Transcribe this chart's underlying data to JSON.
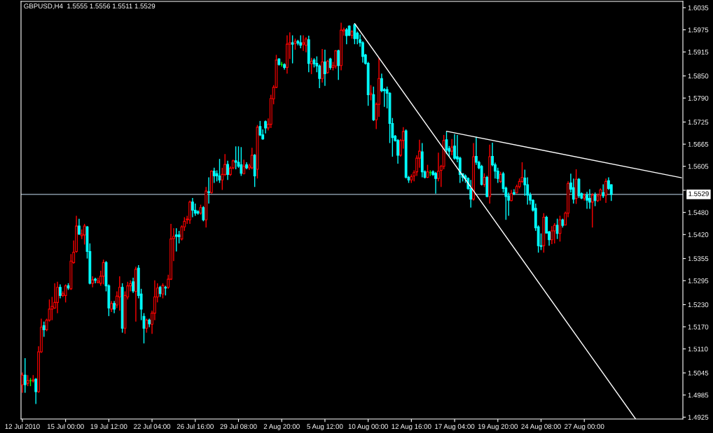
{
  "chart_data": {
    "type": "candlestick",
    "title": "GBPUSD,H4  1.5555 1.5556 1.5511 1.5529",
    "categories": [
      "12 Jul 2010",
      null,
      null,
      null,
      null,
      null,
      null,
      null,
      null,
      null,
      null,
      null,
      null,
      null,
      null,
      null,
      "15 Jul 00:00",
      null,
      null,
      null,
      null,
      null,
      null,
      null,
      null,
      null,
      null,
      null,
      null,
      null,
      null,
      null,
      "19 Jul 12:00",
      null,
      null,
      null,
      null,
      null,
      null,
      null,
      null,
      null,
      null,
      null,
      null,
      null,
      null,
      null,
      "22 Jul 04:00",
      null,
      null,
      null,
      null,
      null,
      null,
      null,
      null,
      null,
      null,
      null,
      null,
      null,
      null,
      null,
      "26 Jul 16:00",
      null,
      null,
      null,
      null,
      null,
      null,
      null,
      null,
      null,
      null,
      null,
      null,
      null,
      null,
      null,
      "29 Jul 08:00",
      null,
      null,
      null,
      null,
      null,
      null,
      null,
      null,
      null,
      null,
      null,
      null,
      null,
      null,
      null,
      "2 Aug 20:00",
      null,
      null,
      null,
      null,
      null,
      null,
      null,
      null,
      null,
      null,
      null,
      null,
      null,
      null,
      null,
      "5 Aug 12:00",
      null,
      null,
      null,
      null,
      null,
      null,
      null,
      null,
      null,
      null,
      null,
      null,
      null,
      null,
      null,
      "10 Aug 00:00",
      null,
      null,
      null,
      null,
      null,
      null,
      null,
      null,
      null,
      null,
      null,
      null,
      null,
      null,
      null,
      "12 Aug 16:00",
      null,
      null,
      null,
      null,
      null,
      null,
      null,
      null,
      null,
      null,
      null,
      null,
      null,
      null,
      null,
      "17 Aug 04:00",
      null,
      null,
      null,
      null,
      null,
      null,
      null,
      null,
      null,
      null,
      null,
      null,
      null,
      null,
      null,
      "19 Aug 20:00",
      null,
      null,
      null,
      null,
      null,
      null,
      null,
      null,
      null,
      null,
      null,
      null,
      null,
      null,
      null,
      "24 Aug 08:00",
      null,
      null,
      null,
      null,
      null,
      null,
      null,
      null,
      null,
      null,
      null,
      null,
      null,
      null,
      null,
      "27 Aug 00:00",
      null,
      null,
      null,
      null,
      null,
      null,
      null,
      null,
      null,
      null,
      null,
      null,
      null,
      null,
      null,
      null,
      null,
      null,
      null,
      null,
      null,
      null,
      null,
      null,
      null,
      null,
      null,
      null,
      null,
      null,
      null,
      null,
      null,
      null,
      null,
      null
    ],
    "ohlc": [
      [
        1.5013,
        1.5046,
        1.4991,
        1.5039
      ],
      [
        1.5039,
        1.5085,
        1.4991,
        1.5013
      ],
      [
        1.5017,
        1.5039,
        1.5009,
        1.5024
      ],
      [
        1.5024,
        1.5031,
        1.5009,
        1.5024
      ],
      [
        1.5023,
        1.5039,
        1.5019,
        1.5026
      ],
      [
        1.5028,
        1.5031,
        1.4961,
        1.4994
      ],
      [
        1.4994,
        1.5117,
        1.4991,
        1.5102
      ],
      [
        1.5102,
        1.5192,
        1.5099,
        1.5169
      ],
      [
        1.5173,
        1.5184,
        1.5143,
        1.5162
      ],
      [
        1.5162,
        1.5192,
        1.5158,
        1.5188
      ],
      [
        1.5188,
        1.5244,
        1.5184,
        1.5218
      ],
      [
        1.5218,
        1.5251,
        1.5188,
        1.5225
      ],
      [
        1.5221,
        1.5288,
        1.5218,
        1.5236
      ],
      [
        1.5236,
        1.5292,
        1.5207,
        1.5277
      ],
      [
        1.5277,
        1.5285,
        1.5247,
        1.5255
      ],
      [
        1.5255,
        1.5266,
        1.5251,
        1.526
      ],
      [
        1.5255,
        1.5285,
        1.5236,
        1.5281
      ],
      [
        1.5281,
        1.5288,
        1.527,
        1.5275
      ],
      [
        1.5273,
        1.5367,
        1.527,
        1.5348
      ],
      [
        1.5344,
        1.5404,
        1.5341,
        1.5372
      ],
      [
        1.5374,
        1.5471,
        1.5371,
        1.5443
      ],
      [
        1.5443,
        1.5463,
        1.5419,
        1.5421
      ],
      [
        1.5417,
        1.5434,
        1.5408,
        1.5421
      ],
      [
        1.5419,
        1.5449,
        1.5393,
        1.5443
      ],
      [
        1.5441,
        1.5443,
        1.5355,
        1.5374
      ],
      [
        1.5374,
        1.5396,
        1.5285,
        1.5288
      ],
      [
        1.5288,
        1.5307,
        1.5277,
        1.5297
      ],
      [
        1.5299,
        1.5303,
        1.5288,
        1.5296
      ],
      [
        1.529,
        1.5303,
        1.5288,
        1.5294
      ],
      [
        1.5288,
        1.5322,
        1.5281,
        1.5307
      ],
      [
        1.5307,
        1.5352,
        1.5285,
        1.5344
      ],
      [
        1.5344,
        1.5348,
        1.5266,
        1.5281
      ],
      [
        1.5281,
        1.5285,
        1.5199,
        1.5221
      ],
      [
        1.5218,
        1.524,
        1.521,
        1.5233
      ],
      [
        1.5233,
        1.524,
        1.5207,
        1.5218
      ],
      [
        1.5229,
        1.5266,
        1.5221,
        1.5253
      ],
      [
        1.5251,
        1.5307,
        1.5214,
        1.5277
      ],
      [
        1.5277,
        1.5288,
        1.5154,
        1.5166
      ],
      [
        1.5166,
        1.5266,
        1.5151,
        1.5255
      ],
      [
        1.5251,
        1.5292,
        1.5244,
        1.5281
      ],
      [
        1.5281,
        1.5296,
        1.5266,
        1.5287
      ],
      [
        1.5292,
        1.5303,
        1.5262,
        1.5267
      ],
      [
        1.5266,
        1.5333,
        1.5184,
        1.5326
      ],
      [
        1.5329,
        1.5337,
        1.5247,
        1.5255
      ],
      [
        1.5259,
        1.5273,
        1.5188,
        1.5218
      ],
      [
        1.5198,
        1.5207,
        1.5125,
        1.5166
      ],
      [
        1.5166,
        1.5192,
        1.5154,
        1.5188
      ],
      [
        1.5188,
        1.5192,
        1.5169,
        1.5178
      ],
      [
        1.5177,
        1.5214,
        1.5151,
        1.5207
      ],
      [
        1.5207,
        1.5296,
        1.5188,
        1.5251
      ],
      [
        1.5251,
        1.5288,
        1.5236,
        1.5275
      ],
      [
        1.5277,
        1.5281,
        1.5251,
        1.526
      ],
      [
        1.5259,
        1.5288,
        1.5247,
        1.5282
      ],
      [
        1.5277,
        1.5281,
        1.5255,
        1.5275
      ],
      [
        1.5277,
        1.5311,
        1.5273,
        1.5299
      ],
      [
        1.5299,
        1.5449,
        1.5297,
        1.5408
      ],
      [
        1.5409,
        1.5437,
        1.5348,
        1.5415
      ],
      [
        1.5419,
        1.5437,
        1.5374,
        1.5415
      ],
      [
        1.5419,
        1.543,
        1.5396,
        1.5414
      ],
      [
        1.5408,
        1.5445,
        1.5404,
        1.5441
      ],
      [
        1.5441,
        1.5467,
        1.543,
        1.5456
      ],
      [
        1.546,
        1.5471,
        1.5449,
        1.5462
      ],
      [
        1.546,
        1.5512,
        1.5449,
        1.5508
      ],
      [
        1.5508,
        1.5519,
        1.5467,
        1.5486
      ],
      [
        1.5486,
        1.5504,
        1.5471,
        1.5478
      ],
      [
        1.5482,
        1.5486,
        1.5474,
        1.5478
      ],
      [
        1.5478,
        1.5501,
        1.5474,
        1.5493
      ],
      [
        1.5493,
        1.5497,
        1.5456,
        1.546
      ],
      [
        1.546,
        1.5549,
        1.5439,
        1.5538
      ],
      [
        1.5536,
        1.5575,
        1.5504,
        1.5534
      ],
      [
        1.5534,
        1.5594,
        1.5531,
        1.5592
      ],
      [
        1.5592,
        1.5601,
        1.556,
        1.5579
      ],
      [
        1.5585,
        1.5594,
        1.5564,
        1.5579
      ],
      [
        1.5579,
        1.5625,
        1.556,
        1.5568
      ],
      [
        1.5568,
        1.5601,
        1.5541,
        1.5583
      ],
      [
        1.5583,
        1.5638,
        1.5579,
        1.561
      ],
      [
        1.561,
        1.562,
        1.5568,
        1.5583
      ],
      [
        1.5583,
        1.5605,
        1.5579,
        1.56
      ],
      [
        1.5601,
        1.5623,
        1.5597,
        1.562
      ],
      [
        1.562,
        1.5659,
        1.5597,
        1.5616
      ],
      [
        1.5616,
        1.5659,
        1.5601,
        1.5605
      ],
      [
        1.5609,
        1.5657,
        1.5579,
        1.5586
      ],
      [
        1.5585,
        1.5623,
        1.5583,
        1.5605
      ],
      [
        1.5609,
        1.5616,
        1.5597,
        1.5601
      ],
      [
        1.5601,
        1.5612,
        1.5595,
        1.5606
      ],
      [
        1.5601,
        1.5655,
        1.5597,
        1.5635
      ],
      [
        1.5635,
        1.5638,
        1.5549,
        1.5579
      ],
      [
        1.5597,
        1.5717,
        1.5572,
        1.5711
      ],
      [
        1.5713,
        1.5728,
        1.5687,
        1.569
      ],
      [
        1.569,
        1.5705,
        1.5677,
        1.5679
      ],
      [
        1.5726,
        1.5729,
        1.5694,
        1.5709
      ],
      [
        1.5709,
        1.5735,
        1.5702,
        1.5719
      ],
      [
        1.5719,
        1.5799,
        1.5709,
        1.5789
      ],
      [
        1.5788,
        1.5825,
        1.5773,
        1.5819
      ],
      [
        1.5819,
        1.5907,
        1.5817,
        1.5893
      ],
      [
        1.5896,
        1.5898,
        1.5878,
        1.5881
      ],
      [
        1.5881,
        1.5888,
        1.5875,
        1.5881
      ],
      [
        1.5881,
        1.5884,
        1.5867,
        1.5873
      ],
      [
        1.5873,
        1.596,
        1.5856,
        1.5936
      ],
      [
        1.5936,
        1.5968,
        1.5896,
        1.594
      ],
      [
        1.594,
        1.596,
        1.5884,
        1.5936
      ],
      [
        1.5938,
        1.5951,
        1.5921,
        1.5944
      ],
      [
        1.5944,
        1.5948,
        1.5933,
        1.5939
      ],
      [
        1.594,
        1.596,
        1.5925,
        1.5933
      ],
      [
        1.5936,
        1.596,
        1.5918,
        1.594
      ],
      [
        1.5933,
        1.5955,
        1.5914,
        1.595
      ],
      [
        1.5948,
        1.5959,
        1.586,
        1.5884
      ],
      [
        1.5883,
        1.5899,
        1.5855,
        1.589
      ],
      [
        1.5893,
        1.5898,
        1.5873,
        1.5883
      ],
      [
        1.5884,
        1.5903,
        1.586,
        1.5877
      ],
      [
        1.5877,
        1.5881,
        1.5817,
        1.5843
      ],
      [
        1.5843,
        1.5923,
        1.5832,
        1.5888
      ],
      [
        1.5888,
        1.5921,
        1.5823,
        1.5856
      ],
      [
        1.5859,
        1.5893,
        1.5856,
        1.589
      ],
      [
        1.5896,
        1.5899,
        1.5867,
        1.5873
      ],
      [
        1.5873,
        1.5888,
        1.5865,
        1.5878
      ],
      [
        1.5877,
        1.592,
        1.587,
        1.5918
      ],
      [
        1.5918,
        1.5921,
        1.5839,
        1.5878
      ],
      [
        1.5878,
        1.5994,
        1.5865,
        1.5974
      ],
      [
        1.5972,
        1.5981,
        1.5959,
        1.5975
      ],
      [
        1.5975,
        1.598,
        1.5936,
        1.5959
      ],
      [
        1.5985,
        1.5987,
        1.5958,
        1.596
      ],
      [
        1.596,
        1.5974,
        1.5951,
        1.597
      ],
      [
        1.5989,
        1.5992,
        1.5936,
        1.5951
      ],
      [
        1.5966,
        1.597,
        1.5936,
        1.5951
      ],
      [
        1.5948,
        1.5962,
        1.5929,
        1.594
      ],
      [
        1.594,
        1.5944,
        1.5886,
        1.5903
      ],
      [
        1.5907,
        1.591,
        1.5881,
        1.5884
      ],
      [
        1.5884,
        1.5888,
        1.5769,
        1.5799
      ],
      [
        1.5799,
        1.5825,
        1.5784,
        1.5803
      ],
      [
        1.5799,
        1.5821,
        1.5728,
        1.5731
      ],
      [
        1.5731,
        1.5778,
        1.5706,
        1.5773
      ],
      [
        1.5773,
        1.5899,
        1.5739,
        1.5843
      ],
      [
        1.5843,
        1.5856,
        1.5806,
        1.581
      ],
      [
        1.5813,
        1.5817,
        1.5766,
        1.581
      ],
      [
        1.5813,
        1.5821,
        1.5762,
        1.5803
      ],
      [
        1.5803,
        1.5806,
        1.5668,
        1.5721
      ],
      [
        1.5721,
        1.5736,
        1.5631,
        1.5683
      ],
      [
        1.5687,
        1.569,
        1.5672,
        1.5675
      ],
      [
        1.5675,
        1.5679,
        1.5612,
        1.5635
      ],
      [
        1.5635,
        1.5679,
        1.5631,
        1.5675
      ],
      [
        1.5675,
        1.5711,
        1.5653,
        1.5699
      ],
      [
        1.5701,
        1.5705,
        1.5572,
        1.5575
      ],
      [
        1.5575,
        1.5579,
        1.556,
        1.5568
      ],
      [
        1.5568,
        1.5583,
        1.556,
        1.5577
      ],
      [
        1.5579,
        1.5594,
        1.5564,
        1.5588
      ],
      [
        1.559,
        1.5635,
        1.5579,
        1.5627
      ],
      [
        1.5627,
        1.5677,
        1.5601,
        1.5646
      ],
      [
        1.5644,
        1.5668,
        1.5575,
        1.559
      ],
      [
        1.559,
        1.5594,
        1.5572,
        1.5575
      ],
      [
        1.5575,
        1.5609,
        1.5573,
        1.559
      ],
      [
        1.5588,
        1.5594,
        1.5579,
        1.5588
      ],
      [
        1.559,
        1.5594,
        1.5579,
        1.5583
      ],
      [
        1.5586,
        1.559,
        1.5531,
        1.5572
      ],
      [
        1.5572,
        1.5642,
        1.5564,
        1.5592
      ],
      [
        1.5594,
        1.5609,
        1.5549,
        1.5605
      ],
      [
        1.5605,
        1.569,
        1.5597,
        1.5675
      ],
      [
        1.5677,
        1.5699,
        1.5638,
        1.5649
      ],
      [
        1.5653,
        1.566,
        1.5631,
        1.5646
      ],
      [
        1.5646,
        1.5679,
        1.5635,
        1.5657
      ],
      [
        1.566,
        1.5692,
        1.5623,
        1.5627
      ],
      [
        1.5631,
        1.569,
        1.5616,
        1.5625
      ],
      [
        1.5627,
        1.5631,
        1.556,
        1.5583
      ],
      [
        1.5585,
        1.5586,
        1.5564,
        1.5575
      ],
      [
        1.5579,
        1.5583,
        1.556,
        1.5572
      ],
      [
        1.5572,
        1.5575,
        1.5541,
        1.5545
      ],
      [
        1.5545,
        1.5568,
        1.5493,
        1.5516
      ],
      [
        1.5516,
        1.5668,
        1.5512,
        1.5631
      ],
      [
        1.5632,
        1.5685,
        1.5609,
        1.5616
      ],
      [
        1.5616,
        1.562,
        1.5597,
        1.5601
      ],
      [
        1.5605,
        1.5609,
        1.5553,
        1.5556
      ],
      [
        1.5556,
        1.5586,
        1.5549,
        1.5575
      ],
      [
        1.5575,
        1.5579,
        1.5521,
        1.5523
      ],
      [
        1.5523,
        1.5664,
        1.5504,
        1.5631
      ],
      [
        1.5632,
        1.5669,
        1.5605,
        1.5609
      ],
      [
        1.5609,
        1.5615,
        1.5572,
        1.5592
      ],
      [
        1.5592,
        1.5601,
        1.556,
        1.5572
      ],
      [
        1.5564,
        1.559,
        1.556,
        1.5583
      ],
      [
        1.5585,
        1.559,
        1.5534,
        1.5545
      ],
      [
        1.5546,
        1.555,
        1.546,
        1.5523
      ],
      [
        1.5525,
        1.5534,
        1.5471,
        1.5513
      ],
      [
        1.5512,
        1.5541,
        1.551,
        1.5531
      ],
      [
        1.5534,
        1.5543,
        1.5527,
        1.5531
      ],
      [
        1.5534,
        1.5555,
        1.5531,
        1.555
      ],
      [
        1.555,
        1.5572,
        1.5545,
        1.5564
      ],
      [
        1.5564,
        1.5616,
        1.556,
        1.5575
      ],
      [
        1.5573,
        1.5596,
        1.5525,
        1.5555
      ],
      [
        1.5555,
        1.5575,
        1.5501,
        1.5527
      ],
      [
        1.5527,
        1.5534,
        1.5501,
        1.5513
      ],
      [
        1.5513,
        1.5516,
        1.5482,
        1.5486
      ],
      [
        1.5491,
        1.5504,
        1.543,
        1.5438
      ],
      [
        1.5441,
        1.5445,
        1.5371,
        1.539
      ],
      [
        1.539,
        1.5423,
        1.5378,
        1.5388
      ],
      [
        1.539,
        1.5478,
        1.5371,
        1.5467
      ],
      [
        1.5467,
        1.5471,
        1.5423,
        1.5424
      ],
      [
        1.5427,
        1.543,
        1.539,
        1.5406
      ],
      [
        1.5406,
        1.5443,
        1.5394,
        1.543
      ],
      [
        1.543,
        1.5451,
        1.5396,
        1.5445
      ],
      [
        1.5445,
        1.5463,
        1.5408,
        1.5423
      ],
      [
        1.5423,
        1.5471,
        1.5401,
        1.546
      ],
      [
        1.546,
        1.5463,
        1.5439,
        1.5445
      ],
      [
        1.5446,
        1.5482,
        1.5445,
        1.5478
      ],
      [
        1.5478,
        1.5564,
        1.5467,
        1.5558
      ],
      [
        1.556,
        1.5585,
        1.5534,
        1.5543
      ],
      [
        1.5547,
        1.5572,
        1.5504,
        1.5516
      ],
      [
        1.5518,
        1.5597,
        1.5503,
        1.557
      ],
      [
        1.557,
        1.5573,
        1.5519,
        1.5525
      ],
      [
        1.5531,
        1.5534,
        1.5516,
        1.5519
      ],
      [
        1.5519,
        1.5531,
        1.5512,
        1.5525
      ],
      [
        1.5527,
        1.5536,
        1.549,
        1.5513
      ],
      [
        1.5518,
        1.5543,
        1.549,
        1.5508
      ],
      [
        1.5508,
        1.5532,
        1.5439,
        1.5527
      ],
      [
        1.5527,
        1.5534,
        1.5497,
        1.5512
      ],
      [
        1.5512,
        1.5531,
        1.5508,
        1.5525
      ],
      [
        1.5527,
        1.5545,
        1.5512,
        1.5541
      ],
      [
        1.5534,
        1.5556,
        1.5519,
        1.5525
      ],
      [
        1.5527,
        1.5572,
        1.5506,
        1.5564
      ],
      [
        1.5566,
        1.5575,
        1.5541,
        1.5545
      ],
      [
        1.5555,
        1.5556,
        1.5511,
        1.5529
      ],
      null,
      null,
      null,
      null,
      null,
      null,
      null,
      null,
      null,
      null,
      null,
      null,
      null,
      null,
      null,
      null,
      null,
      null,
      null,
      null,
      null,
      null,
      null,
      null,
      null,
      null
    ],
    "colors": [
      "#ff0000",
      "#00ffff",
      "#ff0000",
      "#00ff00",
      "#ff0000",
      "#00ffff",
      "#ff0000",
      "#ff0000",
      "#00ffff",
      "#ff0000",
      "#ff0000",
      "#ff0000",
      "#ff0000",
      "#ff0000",
      "#00ffff",
      "#ff0000",
      "#ff0000",
      "#00ffff",
      "#ff0000",
      "#ff0000",
      "#ff0000",
      "#00ffff",
      "#ff0000",
      "#ff0000",
      "#00ffff",
      "#00ffff",
      "#ff0000",
      "#00ffff",
      "#ff0000",
      "#ff0000",
      "#ff0000",
      "#00ffff",
      "#00ffff",
      "#ff0000",
      "#00ffff",
      "#ff0000",
      "#ff0000",
      "#00ffff",
      "#ff0000",
      "#ff0000",
      "#ff0000",
      "#00ffff",
      "#ff0000",
      "#00ffff",
      "#00ffff",
      "#00ffff",
      "#ff0000",
      "#00ffff",
      "#ff0000",
      "#ff0000",
      "#ff0000",
      "#00ffff",
      "#ff0000",
      "#00ffff",
      "#ff0000",
      "#ff0000",
      "#ff0000",
      "#00ffff",
      "#00ffff",
      "#ff0000",
      "#ff0000",
      "#ff0000",
      "#ff0000",
      "#00ffff",
      "#00ffff",
      "#00ffff",
      "#ff0000",
      "#00ffff",
      "#ff0000",
      "#00ffff",
      "#ff0000",
      "#00ffff",
      "#00ffff",
      "#00ffff",
      "#ff0000",
      "#ff0000",
      "#00ffff",
      "#ff0000",
      "#ff0000",
      "#00ffff",
      "#00ffff",
      "#00ffff",
      "#ff0000",
      "#00ffff",
      "#ff0000",
      "#ff0000",
      "#00ffff",
      "#ff0000",
      "#00ffff",
      "#00ffff",
      "#00ffff",
      "#ff0000",
      "#ff0000",
      "#ff0000",
      "#ff0000",
      "#00ffff",
      "#00ff00",
      "#00ffff",
      "#ff0000",
      "#ff0000",
      "#00ffff",
      "#ff0000",
      "#00ffff",
      "#00ffff",
      "#ff0000",
      "#ff0000",
      "#00ffff",
      "#ff0000",
      "#00ffff",
      "#00ffff",
      "#00ffff",
      "#ff0000",
      "#00ffff",
      "#ff0000",
      "#00ffff",
      "#ff0000",
      "#ff0000",
      "#00ffff",
      "#ff0000",
      "#ff0000",
      "#00ffff",
      "#00ffff",
      "#ff0000",
      "#00ffff",
      "#00ffff",
      "#00ffff",
      "#00ffff",
      "#00ffff",
      "#00ffff",
      "#ff0000",
      "#00ffff",
      "#ff0000",
      "#ff0000",
      "#00ffff",
      "#00ffff",
      "#00ffff",
      "#00ffff",
      "#00ffff",
      "#00ffff",
      "#00ffff",
      "#ff0000",
      "#ff0000",
      "#00ffff",
      "#00ffff",
      "#ff0000",
      "#ff0000",
      "#ff0000",
      "#ff0000",
      "#00ffff",
      "#00ffff",
      "#ff0000",
      "#00ff00",
      "#00ffff",
      "#00ffff",
      "#ff0000",
      "#ff0000",
      "#ff0000",
      "#00ffff",
      "#00ffff",
      "#ff0000",
      "#00ffff",
      "#00ffff",
      "#00ffff",
      "#00ffff",
      "#00ffff",
      "#00ffff",
      "#00ffff",
      "#ff0000",
      "#00ffff",
      "#00ffff",
      "#00ffff",
      "#ff0000",
      "#00ffff",
      "#ff0000",
      "#00ffff",
      "#00ffff",
      "#00ffff",
      "#ff0000",
      "#00ffff",
      "#00ffff",
      "#00ffff",
      "#ff0000",
      "#00ffff",
      "#ff0000",
      "#ff0000",
      "#ff0000",
      "#00ffff",
      "#00ffff",
      "#00ffff",
      "#00ffff",
      "#00ffff",
      "#00ffff",
      "#00ffff",
      "#ff0000",
      "#00ffff",
      "#00ffff",
      "#ff0000",
      "#ff0000",
      "#00ffff",
      "#ff0000",
      "#00ffff",
      "#ff0000",
      "#ff0000",
      "#00ffff",
      "#00ffff",
      "#ff0000",
      "#00ffff",
      "#00ffff",
      "#ff0000",
      "#00ffff",
      "#00ffff",
      "#ff0000",
      "#00ffff",
      "#ff0000",
      "#ff0000",
      "#00ffff",
      "#ff0000",
      "#00ffff",
      "#00ffff",
      null,
      null,
      null,
      null,
      null,
      null,
      null,
      null,
      null,
      null,
      null,
      null,
      null,
      null,
      null,
      null,
      null,
      null,
      null,
      null,
      null,
      null,
      null,
      null,
      null,
      null
    ],
    "series": [
      {
        "type": "line",
        "color": "#ffffff",
        "values": [
          null,
          null,
          null,
          null,
          null,
          null,
          null,
          null,
          null,
          null,
          null,
          null,
          null,
          null,
          null,
          null,
          null,
          null,
          null,
          null,
          null,
          null,
          null,
          null,
          null,
          null,
          null,
          null,
          null,
          null,
          null,
          null,
          null,
          null,
          null,
          null,
          null,
          null,
          null,
          null,
          null,
          null,
          null,
          null,
          null,
          null,
          null,
          null,
          null,
          null,
          null,
          null,
          null,
          null,
          null,
          null,
          null,
          null,
          null,
          null,
          null,
          null,
          null,
          null,
          null,
          null,
          null,
          null,
          null,
          null,
          null,
          null,
          null,
          null,
          null,
          null,
          null,
          null,
          null,
          null,
          null,
          null,
          null,
          null,
          null,
          null,
          null,
          null,
          null,
          null,
          null,
          null,
          null,
          null,
          null,
          null,
          null,
          null,
          null,
          null,
          null,
          null,
          null,
          null,
          null,
          null,
          null,
          null,
          null,
          null,
          null,
          null,
          null,
          null,
          null,
          null,
          null,
          null,
          null,
          null,
          null,
          null,
          null,
          1.5992,
          null,
          null,
          null,
          null,
          null,
          null,
          null,
          null,
          null,
          null,
          null,
          null,
          null,
          null,
          null,
          null,
          null,
          null,
          null,
          null,
          null,
          null,
          null,
          null,
          null,
          null,
          null,
          null,
          null,
          null,
          null,
          null,
          null,
          null,
          null,
          null,
          null,
          null,
          null,
          null,
          null,
          null,
          null,
          null,
          null,
          null,
          null,
          null,
          null,
          null,
          null,
          null,
          null,
          null,
          null,
          null,
          null,
          null,
          null,
          null,
          null,
          null,
          null,
          null,
          null,
          null,
          null,
          null,
          null,
          null,
          null,
          null,
          null,
          null,
          null,
          null,
          null,
          null,
          null,
          null,
          null,
          null,
          null,
          null,
          null,
          null,
          null,
          null,
          null,
          null,
          null,
          null,
          null,
          null,
          null,
          null,
          null,
          null,
          null,
          null,
          null,
          null,
          null,
          1.492,
          null,
          null,
          null,
          null,
          null,
          null,
          null,
          null,
          null,
          null,
          null,
          null,
          null,
          null,
          null,
          null,
          null
        ]
      },
      {
        "type": "line",
        "color": "#ffffff",
        "values": [
          null,
          null,
          null,
          null,
          null,
          null,
          null,
          null,
          null,
          null,
          null,
          null,
          null,
          null,
          null,
          null,
          null,
          null,
          null,
          null,
          null,
          null,
          null,
          null,
          null,
          null,
          null,
          null,
          null,
          null,
          null,
          null,
          null,
          null,
          null,
          null,
          null,
          null,
          null,
          null,
          null,
          null,
          null,
          null,
          null,
          null,
          null,
          null,
          null,
          null,
          null,
          null,
          null,
          null,
          null,
          null,
          null,
          null,
          null,
          null,
          null,
          null,
          null,
          null,
          null,
          null,
          null,
          null,
          null,
          null,
          null,
          null,
          null,
          null,
          null,
          null,
          null,
          null,
          null,
          null,
          null,
          null,
          null,
          null,
          null,
          null,
          null,
          null,
          null,
          null,
          null,
          null,
          null,
          null,
          null,
          null,
          null,
          null,
          null,
          null,
          null,
          null,
          null,
          null,
          null,
          null,
          null,
          null,
          null,
          null,
          null,
          null,
          null,
          null,
          null,
          null,
          null,
          null,
          null,
          null,
          null,
          null,
          null,
          null,
          null,
          null,
          null,
          null,
          null,
          null,
          null,
          null,
          null,
          null,
          null,
          null,
          null,
          null,
          null,
          null,
          null,
          null,
          null,
          null,
          null,
          null,
          null,
          null,
          null,
          null,
          null,
          null,
          null,
          null,
          null,
          null,
          null,
          1.57,
          null,
          null,
          null,
          null,
          null,
          null,
          null,
          null,
          null,
          null,
          null,
          null,
          null,
          null,
          null,
          null,
          null,
          null,
          null,
          null,
          null,
          null,
          null,
          null,
          null,
          null,
          null,
          null,
          null,
          null,
          null,
          null,
          null,
          null,
          null,
          null,
          null,
          null,
          null,
          null,
          null,
          null,
          null,
          null,
          null,
          null,
          null,
          null,
          null,
          null,
          null,
          null,
          null,
          null,
          null,
          null,
          null,
          null,
          null,
          null,
          null,
          null,
          null,
          null,
          null,
          null,
          null,
          null,
          null,
          null,
          null,
          null,
          null,
          null,
          null,
          null,
          null,
          null,
          null,
          null,
          null,
          null,
          null,
          null,
          null,
          null,
          1.5574
        ]
      }
    ],
    "ref_lines": [
      {
        "axis": "y",
        "value": 1.5529,
        "label": "1.5529",
        "color": "#a0b4c4"
      }
    ],
    "ylim": [
      1.492,
      1.6052
    ],
    "yticks": [
      1.6035,
      1.5975,
      1.5915,
      {
        "value": 1.585,
        "label": "1.5850"
      },
      {
        "value": 1.579,
        "label": "1.5790"
      },
      1.5725,
      1.5665,
      1.5605,
      {
        "value": 1.554,
        "label": null
      },
      {
        "value": 1.548,
        "label": "1.5480"
      },
      {
        "value": 1.542,
        "label": "1.5420"
      },
      1.5355,
      1.5295,
      {
        "value": 1.523,
        "label": "1.5230"
      },
      {
        "value": 1.517,
        "label": "1.5170"
      },
      {
        "value": 1.511,
        "label": "1.5110"
      },
      1.5045,
      1.4985,
      1.4925
    ]
  }
}
